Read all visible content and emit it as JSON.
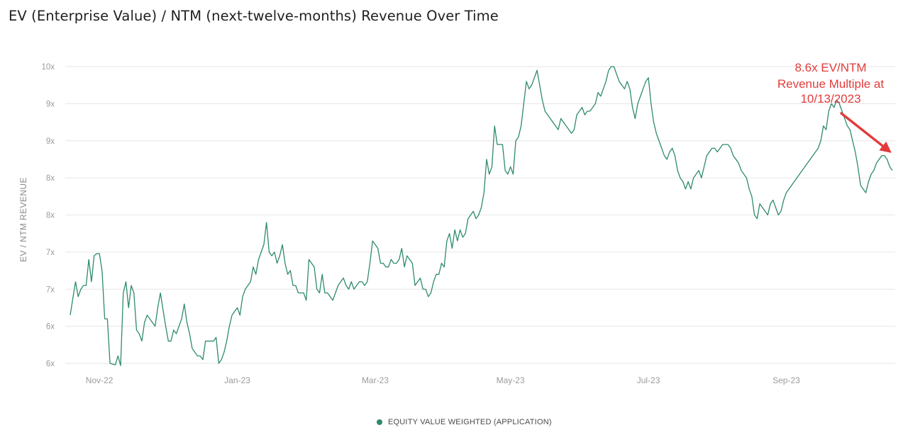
{
  "colors": {
    "series": "#2e8b6a",
    "annotation": "#e23b3b",
    "grid": "#e6e6e6"
  },
  "chart_data": {
    "type": "line",
    "title": "EV (Enterprise Value) / NTM (next-twelve-months) Revenue Over Time",
    "xlabel": "",
    "ylabel": "EV / NTM REVENUE",
    "y_tick_labels": [
      "6x",
      "6x",
      "7x",
      "7x",
      "8x",
      "8x",
      "9x",
      "9x",
      "10x"
    ],
    "ylim": [
      6.0,
      10.0
    ],
    "x_tick_labels": [
      "Nov-22",
      "Jan-23",
      "Mar-23",
      "May-23",
      "Jul-23",
      "Sep-23"
    ],
    "x_tick_index": [
      11,
      63,
      115,
      166,
      218,
      270
    ],
    "grid": true,
    "legend_position": "bottom-center",
    "series": [
      {
        "name": "EQUITY VALUE WEIGHTED (APPLICATION)",
        "values": [
          6.65,
          6.88,
          7.1,
          6.9,
          7.0,
          7.05,
          7.05,
          7.4,
          7.1,
          7.45,
          7.48,
          7.48,
          7.25,
          6.6,
          6.6,
          6.0,
          5.99,
          5.98,
          6.1,
          5.97,
          6.95,
          7.1,
          6.75,
          7.05,
          6.95,
          6.45,
          6.4,
          6.3,
          6.55,
          6.65,
          6.6,
          6.55,
          6.5,
          6.75,
          6.95,
          6.72,
          6.5,
          6.3,
          6.3,
          6.45,
          6.4,
          6.5,
          6.6,
          6.8,
          6.55,
          6.4,
          6.2,
          6.15,
          6.1,
          6.1,
          6.05,
          6.3,
          6.3,
          6.3,
          6.3,
          6.35,
          6.0,
          6.05,
          6.15,
          6.3,
          6.5,
          6.65,
          6.7,
          6.75,
          6.65,
          6.9,
          7.0,
          7.05,
          7.1,
          7.3,
          7.2,
          7.4,
          7.5,
          7.6,
          7.9,
          7.5,
          7.45,
          7.5,
          7.35,
          7.45,
          7.6,
          7.35,
          7.2,
          7.25,
          7.05,
          7.05,
          6.95,
          6.95,
          6.95,
          6.85,
          7.4,
          7.35,
          7.3,
          7.0,
          6.95,
          7.2,
          6.95,
          6.95,
          6.9,
          6.85,
          6.95,
          7.05,
          7.1,
          7.15,
          7.05,
          7.0,
          7.1,
          7.0,
          7.05,
          7.1,
          7.1,
          7.05,
          7.1,
          7.35,
          7.65,
          7.6,
          7.55,
          7.35,
          7.35,
          7.3,
          7.3,
          7.4,
          7.35,
          7.35,
          7.4,
          7.55,
          7.3,
          7.45,
          7.4,
          7.35,
          7.05,
          7.1,
          7.15,
          7.0,
          7.0,
          6.9,
          6.95,
          7.1,
          7.2,
          7.2,
          7.35,
          7.3,
          7.65,
          7.75,
          7.55,
          7.8,
          7.65,
          7.8,
          7.7,
          7.75,
          7.95,
          8.0,
          8.05,
          7.95,
          8.0,
          8.1,
          8.3,
          8.75,
          8.55,
          8.65,
          9.2,
          8.95,
          8.95,
          8.95,
          8.6,
          8.55,
          8.65,
          8.55,
          9.0,
          9.05,
          9.2,
          9.5,
          9.8,
          9.7,
          9.75,
          9.85,
          9.95,
          9.75,
          9.55,
          9.4,
          9.35,
          9.3,
          9.25,
          9.2,
          9.15,
          9.3,
          9.25,
          9.2,
          9.15,
          9.1,
          9.15,
          9.35,
          9.4,
          9.45,
          9.35,
          9.4,
          9.4,
          9.45,
          9.5,
          9.65,
          9.6,
          9.7,
          9.8,
          9.95,
          10.0,
          10.0,
          9.9,
          9.8,
          9.75,
          9.7,
          9.8,
          9.7,
          9.45,
          9.3,
          9.5,
          9.6,
          9.7,
          9.8,
          9.85,
          9.5,
          9.25,
          9.1,
          9.0,
          8.9,
          8.8,
          8.75,
          8.85,
          8.9,
          8.8,
          8.6,
          8.5,
          8.45,
          8.35,
          8.45,
          8.35,
          8.5,
          8.55,
          8.6,
          8.5,
          8.65,
          8.8,
          8.85,
          8.9,
          8.9,
          8.85,
          8.9,
          8.95,
          8.95,
          8.95,
          8.9,
          8.8,
          8.75,
          8.7,
          8.6,
          8.55,
          8.5,
          8.35,
          8.25,
          8.0,
          7.95,
          8.15,
          8.1,
          8.05,
          8.0,
          8.15,
          8.2,
          8.1,
          8.0,
          8.05,
          8.2,
          8.3,
          8.35,
          8.4,
          8.45,
          8.5,
          8.55,
          8.6,
          8.65,
          8.7,
          8.75,
          8.8,
          8.85,
          8.9,
          9.0,
          9.2,
          9.15,
          9.4,
          9.5,
          9.45,
          9.55,
          9.5,
          9.4,
          9.3,
          9.2,
          9.15,
          9.0,
          8.85,
          8.65,
          8.4,
          8.35,
          8.3,
          8.45,
          8.55,
          8.6,
          8.7,
          8.75,
          8.8,
          8.8,
          8.75,
          8.65,
          8.6
        ]
      }
    ],
    "annotations": [
      {
        "lines": [
          "8.6x EV/NTM",
          "Revenue Multiple at",
          "10/13/2023"
        ]
      }
    ]
  }
}
